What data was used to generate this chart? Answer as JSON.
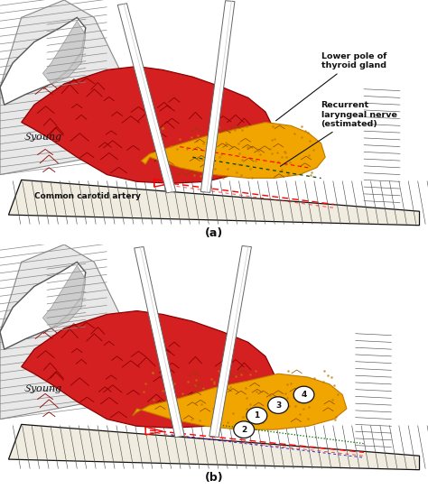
{
  "title_a": "(a)",
  "title_b": "(b)",
  "label_lower_pole": "Lower pole of\nthyroid gland",
  "label_recurrent": "Recurrent\nlaryngeal nerve\n(estimated)",
  "label_carotid": "Common carotid artery",
  "circles_b": [
    "1",
    "2",
    "3",
    "4"
  ],
  "signature": "Young",
  "bg_color": "#ffffff",
  "red_color": "#d42020",
  "orange_color": "#f0a500",
  "panel_label_a": "(a)",
  "panel_label_b": "(b)"
}
